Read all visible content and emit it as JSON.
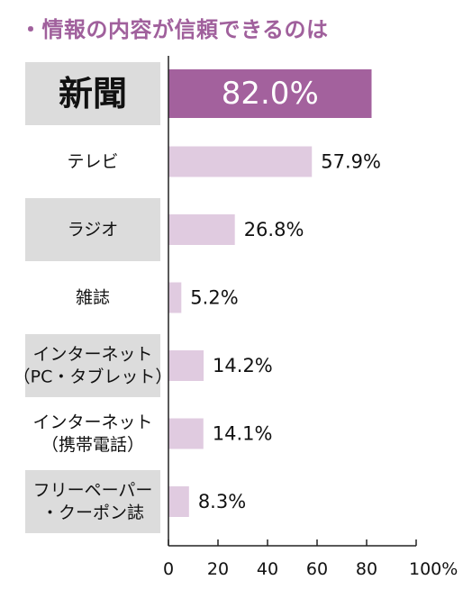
{
  "title": "・情報の内容が信頼できるのは",
  "colors": {
    "highlight_bar": "#a3619d",
    "bar": "#e0cbe0",
    "label_bg": "#dcdcdc",
    "title": "#a0609c",
    "axis": "#222222"
  },
  "chart_data": {
    "type": "bar",
    "orientation": "horizontal",
    "title": "・情報の内容が信頼できるのは",
    "categories": [
      [
        "新聞"
      ],
      [
        "テレビ"
      ],
      [
        "ラジオ"
      ],
      [
        "雑誌"
      ],
      [
        "インターネット",
        "（PC・タブレット）"
      ],
      [
        "インターネット",
        "（携帯電話）"
      ],
      [
        "フリーペーパー",
        "・クーポン誌"
      ]
    ],
    "values": [
      82.0,
      57.9,
      26.8,
      5.2,
      14.2,
      14.1,
      8.3
    ],
    "value_labels": [
      "82.0%",
      "57.9%",
      "26.8%",
      "5.2%",
      "14.2%",
      "14.1%",
      "8.3%"
    ],
    "highlight_index": 0,
    "label_shaded": [
      true,
      false,
      true,
      false,
      true,
      false,
      true
    ],
    "xlim": [
      0,
      100
    ],
    "xticks": [
      0,
      20,
      40,
      60,
      80,
      100
    ],
    "xtick_labels": [
      "0",
      "20",
      "40",
      "60",
      "80",
      "100%"
    ],
    "grid": false,
    "legend": "none"
  }
}
